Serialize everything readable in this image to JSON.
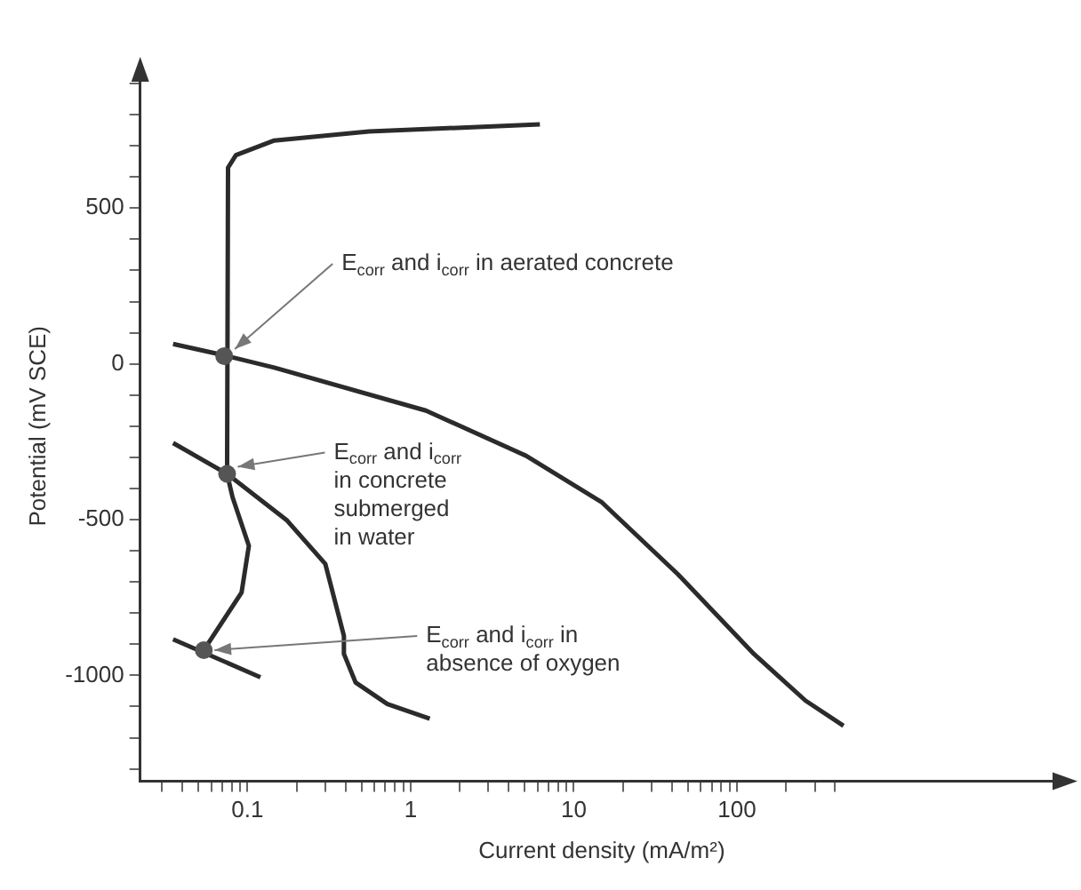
{
  "chart_data": {
    "type": "line",
    "xlabel": "Current density (mA/m²)",
    "ylabel": "Potential (mV SCE)",
    "log": "x",
    "grid": false,
    "legend": false,
    "xlim": [
      0.022,
      10000
    ],
    "ylim": [
      -1340,
      940
    ],
    "xticks": [
      {
        "value": 0.03,
        "label": null
      },
      {
        "value": 0.04,
        "label": null
      },
      {
        "value": 0.05,
        "label": null
      },
      {
        "value": 0.06,
        "label": null
      },
      {
        "value": 0.07,
        "label": null
      },
      {
        "value": 0.08,
        "label": null
      },
      {
        "value": 0.09,
        "label": null
      },
      0.1,
      {
        "value": 0.2,
        "label": null
      },
      {
        "value": 0.3,
        "label": null
      },
      {
        "value": 0.4,
        "label": null
      },
      {
        "value": 0.5,
        "label": null
      },
      {
        "value": 0.6,
        "label": null
      },
      {
        "value": 0.7,
        "label": null
      },
      {
        "value": 0.8,
        "label": null
      },
      {
        "value": 0.9,
        "label": null
      },
      1,
      {
        "value": 2,
        "label": null
      },
      {
        "value": 3,
        "label": null
      },
      {
        "value": 4,
        "label": null
      },
      {
        "value": 5,
        "label": null
      },
      {
        "value": 6,
        "label": null
      },
      {
        "value": 7,
        "label": null
      },
      {
        "value": 8,
        "label": null
      },
      {
        "value": 9,
        "label": null
      },
      10,
      {
        "value": 20,
        "label": null
      },
      {
        "value": 30,
        "label": null
      },
      {
        "value": 40,
        "label": null
      },
      {
        "value": 50,
        "label": null
      },
      {
        "value": 60,
        "label": null
      },
      {
        "value": 70,
        "label": null
      },
      {
        "value": 80,
        "label": null
      },
      {
        "value": 90,
        "label": null
      },
      100,
      {
        "value": 200,
        "label": null
      },
      {
        "value": 300,
        "label": null
      },
      {
        "value": 400,
        "label": null
      }
    ],
    "yticks": [
      {
        "value": -1300,
        "label": null
      },
      {
        "value": -1200,
        "label": null
      },
      {
        "value": -1100,
        "label": null
      },
      -1000,
      {
        "value": -900,
        "label": null
      },
      {
        "value": -800,
        "label": null
      },
      {
        "value": -700,
        "label": null
      },
      {
        "value": -600,
        "label": null
      },
      -500,
      {
        "value": -400,
        "label": null
      },
      {
        "value": -300,
        "label": null
      },
      {
        "value": -200,
        "label": null
      },
      {
        "value": -100,
        "label": null
      },
      0,
      {
        "value": 100,
        "label": null
      },
      {
        "value": 200,
        "label": null
      },
      {
        "value": 300,
        "label": null
      },
      {
        "value": 400,
        "label": null
      },
      500,
      {
        "value": 600,
        "label": null
      },
      {
        "value": 700,
        "label": null
      },
      {
        "value": 800,
        "label": null
      },
      {
        "value": 900,
        "label": null
      }
    ],
    "series": [
      {
        "type": "line",
        "color": "#2b2b2b",
        "x": [
          0.054,
          0.092,
          0.102,
          0.081,
          0.075,
          0.076,
          0.085,
          0.146,
          0.555,
          6.2
        ],
        "values": [
          -919,
          -734,
          -584,
          -428,
          -353,
          630,
          670,
          717,
          746,
          769
        ]
      },
      {
        "type": "line",
        "color": "#2b2b2b",
        "x": [
          0.035,
          0.07,
          0.146,
          1.24,
          5.1,
          14.9,
          43.6,
          127,
          263,
          450
        ],
        "values": [
          64,
          29,
          -12,
          -150,
          -295,
          -445,
          -676,
          -931,
          -1081,
          -1162
        ]
      },
      {
        "type": "line",
        "color": "#2b2b2b",
        "x": [
          0.035,
          0.075,
          0.175,
          0.3,
          0.39,
          0.39,
          0.46,
          0.72,
          1.31
        ],
        "values": [
          -254,
          -353,
          -503,
          -642,
          -873,
          -931,
          -1023,
          -1092,
          -1139
        ]
      },
      {
        "type": "line",
        "color": "#2b2b2b",
        "x": [
          0.035,
          0.12
        ],
        "values": [
          -884,
          -1006
        ]
      },
      {
        "type": "scatter",
        "color": "#555555",
        "x": [
          0.072,
          0.075,
          0.054
        ],
        "values": [
          25,
          -353,
          -919
        ]
      }
    ],
    "annotations": [
      {
        "text": "E$_{corr}$ and i$_{corr}$ in aerated concrete",
        "x": 0.072,
        "y": 25
      },
      {
        "text": "E$_{corr}$ and i$_{corr}$\nin concrete\nsubmerged\nin water",
        "x": 0.075,
        "y": -353
      },
      {
        "text": "E$_{corr}$ and i$_{corr}$ in\nabsence of oxygen",
        "x": 0.054,
        "y": -919
      }
    ]
  }
}
